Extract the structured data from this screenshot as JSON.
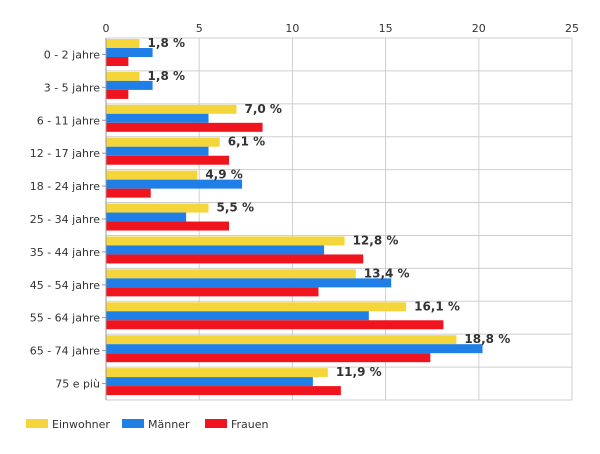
{
  "chart_data": {
    "type": "bar",
    "orientation": "horizontal",
    "categories": [
      "0 - 2 jahre",
      "3 - 5 jahre",
      "6 - 11 jahre",
      "12 - 17 jahre",
      "18 - 24 jahre",
      "25 - 34 jahre",
      "35 - 44 jahre",
      "45 - 54 jahre",
      "55 - 64 jahre",
      "65 - 74 jahre",
      "75 e più"
    ],
    "series": [
      {
        "name": "Einwohner",
        "color": "#f5d63a",
        "values": [
          1.8,
          1.8,
          7.0,
          6.1,
          4.9,
          5.5,
          12.8,
          13.4,
          16.1,
          18.8,
          11.9
        ],
        "labels": [
          "1,8 %",
          "1,8 %",
          "7,0 %",
          "6,1 %",
          "4,9 %",
          "5,5 %",
          "12,8 %",
          "13,4 %",
          "16,1 %",
          "18,8 %",
          "11,9 %"
        ]
      },
      {
        "name": "Männer",
        "color": "#1f7fe6",
        "values": [
          2.5,
          2.5,
          5.5,
          5.5,
          7.3,
          4.3,
          11.7,
          15.3,
          14.1,
          20.2,
          11.1
        ]
      },
      {
        "name": "Frauen",
        "color": "#f0141e",
        "values": [
          1.2,
          1.2,
          8.4,
          6.6,
          2.4,
          6.6,
          13.8,
          11.4,
          18.1,
          17.4,
          12.6
        ]
      }
    ],
    "xlim": [
      0,
      25
    ],
    "xticks": [
      0,
      5,
      10,
      15,
      20,
      25
    ],
    "title": "",
    "xlabel": "",
    "ylabel": "",
    "grid": true,
    "legend_position": "bottom-left"
  }
}
